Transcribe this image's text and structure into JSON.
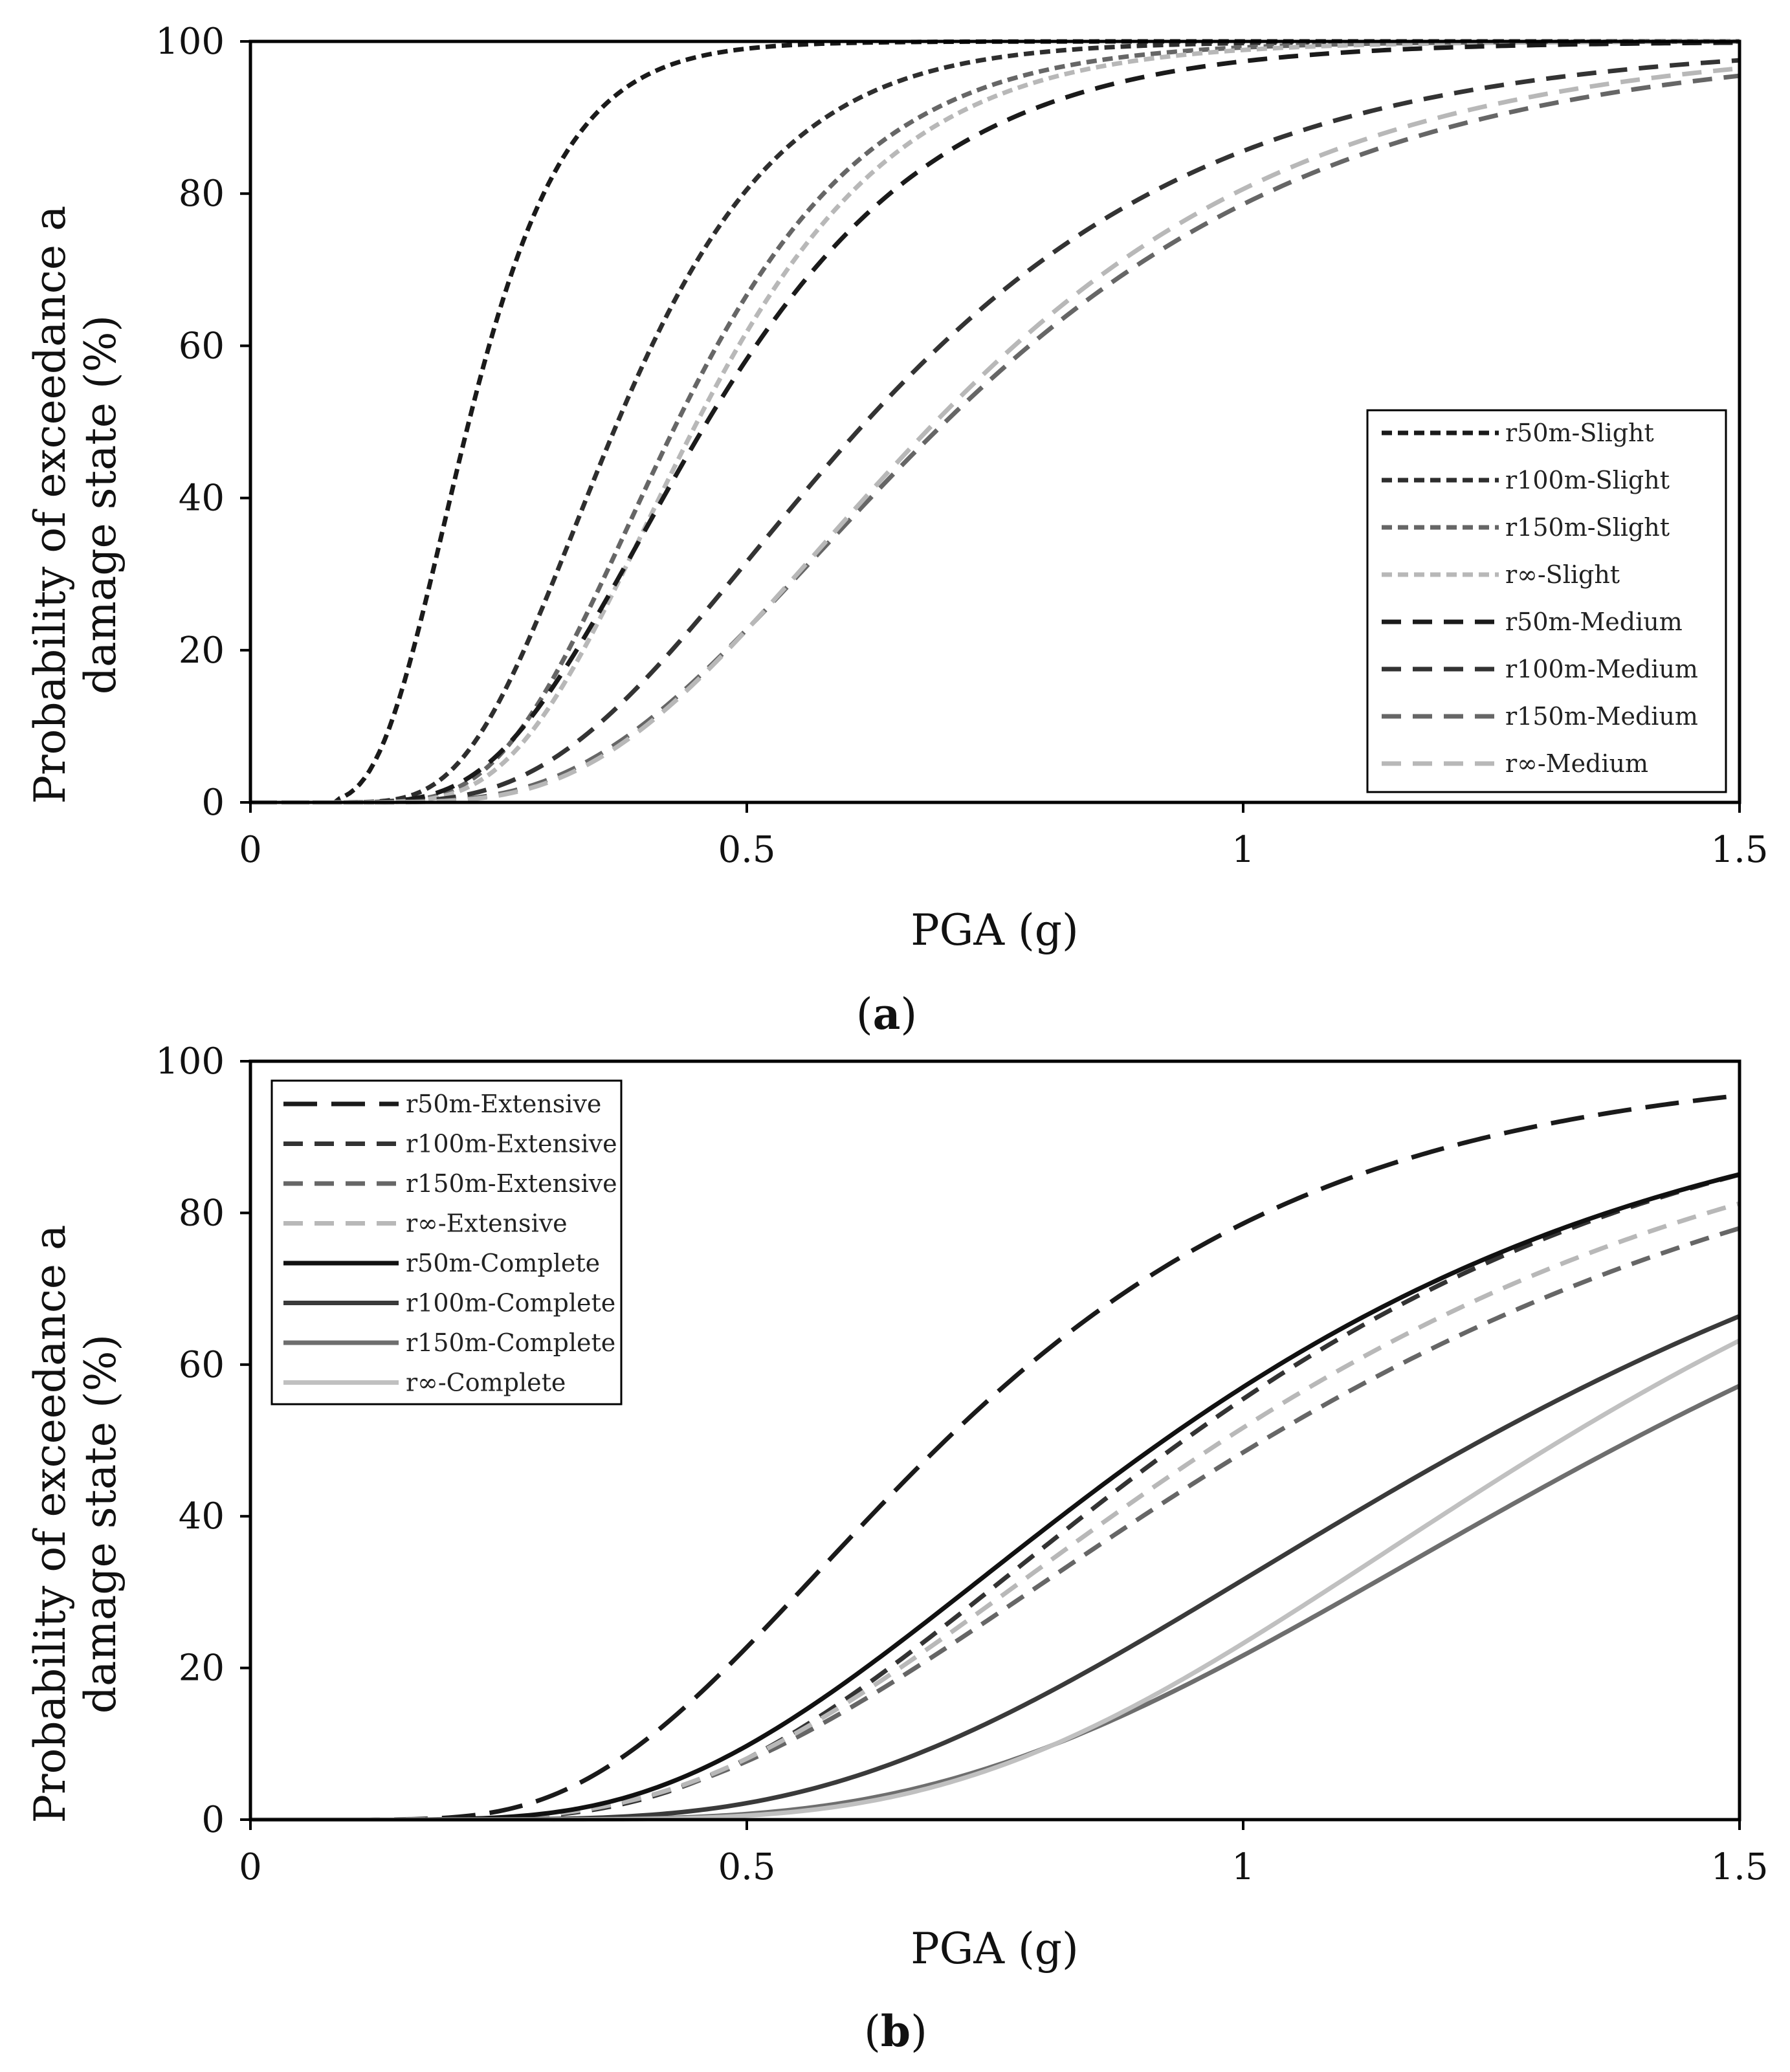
{
  "chart_data": [
    {
      "type": "line",
      "panel": "a",
      "label_open": "(",
      "label_letter": "a",
      "label_close": ")",
      "xlabel": "PGA (g)",
      "ylabel_line1": "Probability of exceedance a",
      "ylabel_line2": "damage state (%)",
      "xlim": [
        0,
        1.5
      ],
      "ylim": [
        0,
        100
      ],
      "xticks": [
        0,
        0.5,
        1,
        1.5
      ],
      "xtick_labels": [
        "0",
        "0.5",
        "1",
        "1.5"
      ],
      "yticks": [
        0,
        20,
        40,
        60,
        80,
        100
      ],
      "ytick_labels": [
        "0",
        "20",
        "40",
        "60",
        "80",
        "100"
      ],
      "legend_position": "lower-right",
      "series": [
        {
          "name": "r50m-Slight",
          "color": "#1a1a1a",
          "dash": "short",
          "median": 0.22,
          "beta": 0.35,
          "x_start": 0.09
        },
        {
          "name": "r100m-Slight",
          "color": "#2e2e2e",
          "dash": "short",
          "median": 0.37,
          "beta": 0.35,
          "x_start": 0.1
        },
        {
          "name": "r150m-Slight",
          "color": "#666666",
          "dash": "short",
          "median": 0.43,
          "beta": 0.35,
          "x_start": 0.1
        },
        {
          "name": "r∞-Slight",
          "color": "#b8b8b8",
          "dash": "short",
          "median": 0.45,
          "beta": 0.35,
          "x_start": 0.1
        },
        {
          "name": "r50m-Medium",
          "color": "#1a1a1a",
          "dash": "long",
          "median": 0.46,
          "beta": 0.4,
          "x_start": 0.1
        },
        {
          "name": "r100m-Medium",
          "color": "#333333",
          "dash": "long",
          "median": 0.62,
          "beta": 0.45,
          "x_start": 0.1
        },
        {
          "name": "r150m-Medium",
          "color": "#666666",
          "dash": "long",
          "median": 0.7,
          "beta": 0.45,
          "x_start": 0.1
        },
        {
          "name": "r∞-Medium",
          "color": "#b8b8b8",
          "dash": "long",
          "median": 0.69,
          "beta": 0.43,
          "x_start": 0.1
        }
      ]
    },
    {
      "type": "line",
      "panel": "b",
      "label_open": "(",
      "label_letter": "b",
      "label_close": ")",
      "xlabel": "PGA (g)",
      "ylabel_line1": "Probability of exceedance a",
      "ylabel_line2": "damage state (%)",
      "xlim": [
        0,
        1.5
      ],
      "ylim": [
        0,
        100
      ],
      "xticks": [
        0,
        0.5,
        1,
        1.5
      ],
      "xtick_labels": [
        "0",
        "0.5",
        "1",
        "1.5"
      ],
      "yticks": [
        0,
        20,
        40,
        60,
        80,
        100
      ],
      "ytick_labels": [
        "0",
        "20",
        "40",
        "60",
        "80",
        "100"
      ],
      "legend_position": "upper-left",
      "series": [
        {
          "name": "r50m-Extensive",
          "color": "#1a1a1a",
          "dash": "xlong",
          "median": 0.7,
          "beta": 0.45,
          "x_start": 0.0
        },
        {
          "name": "r100m-Extensive",
          "color": "#333333",
          "dash": "long",
          "median": 0.94,
          "beta": 0.45,
          "x_start": 0.0
        },
        {
          "name": "r150m-Extensive",
          "color": "#666666",
          "dash": "long",
          "median": 1.02,
          "beta": 0.5,
          "x_start": 0.0
        },
        {
          "name": "r∞-Extensive",
          "color": "#b8b8b8",
          "dash": "long",
          "median": 0.98,
          "beta": 0.48,
          "x_start": 0.0
        },
        {
          "name": "r50m-Complete",
          "color": "#111111",
          "dash": "solid",
          "median": 0.92,
          "beta": 0.47,
          "x_start": 0.0
        },
        {
          "name": "r100m-Complete",
          "color": "#3a3a3a",
          "dash": "solid",
          "median": 1.24,
          "beta": 0.45,
          "x_start": 0.0
        },
        {
          "name": "r150m-Complete",
          "color": "#6e6e6e",
          "dash": "solid",
          "median": 1.39,
          "beta": 0.42,
          "x_start": 0.0
        },
        {
          "name": "r∞-Complete",
          "color": "#c0c0c0",
          "dash": "solid",
          "median": 1.32,
          "beta": 0.38,
          "x_start": 0.0
        }
      ]
    }
  ]
}
